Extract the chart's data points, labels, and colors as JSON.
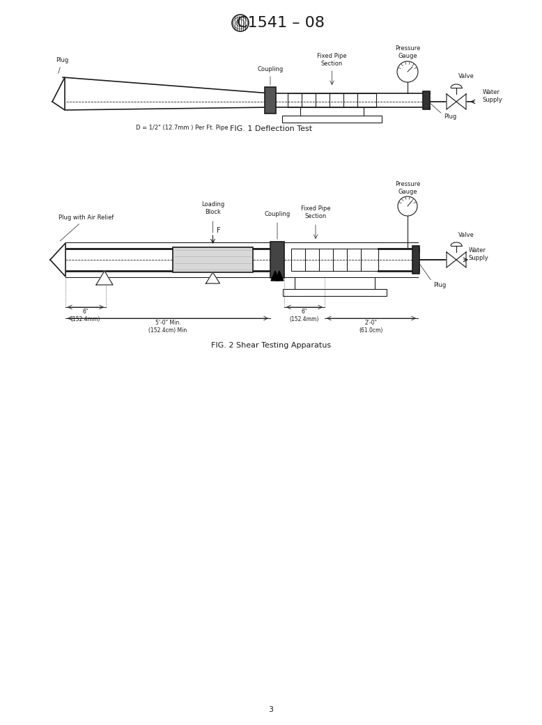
{
  "title": "C1541 – 08",
  "fig1_caption": "FIG. 1 Deflection Test",
  "fig2_caption": "FIG. 2 Shear Testing Apparatus",
  "background_color": "#ffffff",
  "line_color": "#1a1a1a",
  "text_color": "#1a1a1a",
  "page_number": "3",
  "fig1_labels": {
    "plug": "Plug",
    "coupling": "Coupling",
    "fixed_pipe_section": "Fixed Pipe\nSection",
    "pressure_gauge": "Pressure\nGauge",
    "valve": "Valve",
    "water_supply": "Water\nSupply",
    "plug2": "Plug",
    "deflection": "D = 1/2\" (12.7mm ) Per Ft. Pipe"
  },
  "fig2_labels": {
    "plug_air": "Plug with Air Relief",
    "loading_block": "Loading\nBlock",
    "f_label": "F",
    "coupling": "Coupling",
    "fixed_pipe_section": "Fixed Pipe\nSection",
    "pressure_gauge": "Pressure\nGauge",
    "valve": "Valve",
    "water_supply": "Water\nSupply",
    "plug": "Plug",
    "dim1": "6\"\n(152.4mm)",
    "dim2": "6\"\n(152.4mm)",
    "dim3": "5'-0\" Min.\n(152.4cm) Min",
    "dim4": "2'-0\"\n(61.0cm)"
  }
}
